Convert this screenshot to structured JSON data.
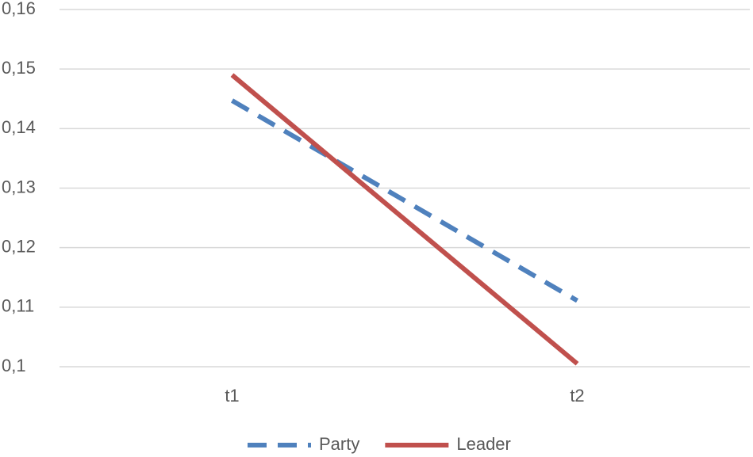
{
  "chart_data": {
    "type": "line",
    "categories": [
      "t1",
      "t2"
    ],
    "series": [
      {
        "name": "Party",
        "color": "#4f81bd",
        "dash": "dashed",
        "values": [
          0.1447,
          0.1111
        ]
      },
      {
        "name": "Leader",
        "color": "#c0504d",
        "dash": "solid",
        "values": [
          0.149,
          0.1005
        ]
      }
    ],
    "ylim": [
      0.1,
      0.16
    ],
    "yticks": [
      {
        "value": 0.1,
        "label": "0,1"
      },
      {
        "value": 0.11,
        "label": "0,11"
      },
      {
        "value": 0.12,
        "label": "0,12"
      },
      {
        "value": 0.13,
        "label": "0,13"
      },
      {
        "value": 0.14,
        "label": "0,14"
      },
      {
        "value": 0.15,
        "label": "0,15"
      },
      {
        "value": 0.16,
        "label": "0,16"
      }
    ],
    "grid": true,
    "legend": "bottom"
  }
}
